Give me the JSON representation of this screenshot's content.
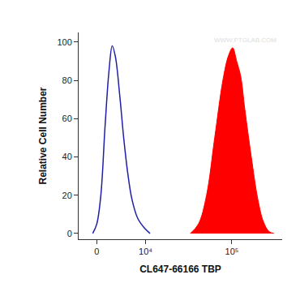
{
  "chart_data": {
    "type": "area",
    "x_label": "CL647-66166 TBP",
    "y_label": "Relative Cell Number",
    "annotation": "WWW.PTGLAB.COM",
    "xlim": [
      -3000,
      365000
    ],
    "xticks": [
      0,
      {
        "value": 10000,
        "label": "10⁴"
      },
      {
        "value": 100000,
        "label": "10⁵"
      }
    ],
    "ylim": [
      -3,
      105
    ],
    "yticks": [
      0,
      20,
      40,
      60,
      80,
      100
    ],
    "grid": false,
    "series": [
      {
        "type": "line",
        "color": "#1f1fa8",
        "x": [
          -650,
          0,
          650,
          1310,
          1980,
          2530,
          3100,
          3880,
          4640,
          5450,
          6390,
          7780,
          9560,
          11400
        ],
        "values": [
          0,
          5,
          20,
          55,
          85,
          98,
          92,
          72,
          50,
          32,
          18,
          8,
          3,
          0
        ]
      },
      {
        "type": "area",
        "color": "#ff0000",
        "x": [
          34100,
          42200,
          52000,
          64200,
          79300,
          91800,
          102000,
          113200,
          125700,
          139500,
          165000,
          195000,
          226000,
          261000,
          296000
        ],
        "values": [
          0,
          5,
          20,
          50,
          80,
          93,
          97,
          90,
          82,
          65,
          40,
          18,
          6,
          1,
          0
        ]
      }
    ]
  }
}
